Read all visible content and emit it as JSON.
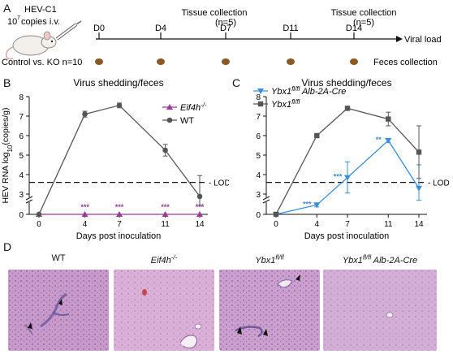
{
  "panels": {
    "a": "A",
    "b": "B",
    "c": "C",
    "d": "D"
  },
  "timeline": {
    "virus": "HEV-C1",
    "dose_base": "10",
    "dose_exp": "7",
    "dose_rest": "copies  i.v.",
    "groups": "Control vs. KO  n=10",
    "days": [
      "D0",
      "D4",
      "D7",
      "D11",
      "D14"
    ],
    "tissue1_line1": "Tissue collection",
    "tissue1_line2": "(n=5)",
    "tissue2_line1": "Tissue collection",
    "tissue2_line2": "(n=5)",
    "viral_load": "Viral load",
    "feces": "Feces collection"
  },
  "chart_data": [
    {
      "type": "line",
      "title": "Virus shedding/feces",
      "xlabel": "Days post inoculation",
      "ylabel": "HEV RNA log10(copies/g)",
      "x": [
        0,
        4,
        7,
        11,
        14
      ],
      "yticks": [
        "0",
        "3",
        "4",
        "5",
        "6",
        "7",
        "8"
      ],
      "ylim_broken": [
        0,
        8
      ],
      "lod": 3.6,
      "lod_label": "LOD",
      "series": [
        {
          "name": "Eif4h-/-",
          "color": "#9b3b95",
          "marker": "triangle",
          "values": [
            0,
            0,
            0,
            0,
            0
          ],
          "errors": [
            0,
            0,
            0,
            0,
            0
          ],
          "significance": [
            "",
            "***",
            "***",
            "***",
            "***"
          ]
        },
        {
          "name": "WT",
          "color": "#555555",
          "marker": "circle",
          "values": [
            0,
            7.1,
            7.55,
            5.25,
            2.65
          ],
          "errors": [
            0,
            0.15,
            0.12,
            0.3,
            1.3
          ]
        }
      ]
    },
    {
      "type": "line",
      "title": "Virus shedding/feces",
      "xlabel": "Days post inoculation",
      "ylabel": "",
      "x": [
        0,
        4,
        7,
        11,
        14
      ],
      "yticks": [
        "0",
        "3",
        "4",
        "5",
        "6",
        "7",
        "8"
      ],
      "ylim_broken": [
        0,
        8
      ],
      "lod": 3.6,
      "lod_label": "LOD",
      "series": [
        {
          "name": "Ybx1fl/fl Alb-2A-Cre",
          "color": "#3a8fdb",
          "marker": "triangle-down",
          "values": [
            0,
            1.4,
            3.85,
            5.75,
            3.3
          ],
          "errors": [
            0,
            0.3,
            0.8,
            0.1,
            1.2
          ],
          "significance": [
            "",
            "***",
            "***",
            "**",
            ""
          ]
        },
        {
          "name": "Ybx1fl/fl",
          "color": "#555555",
          "marker": "square",
          "values": [
            0,
            6.0,
            7.4,
            6.85,
            5.15
          ],
          "errors": [
            0,
            0.05,
            0.1,
            0.35,
            1.35
          ]
        }
      ]
    }
  ],
  "histology": {
    "titles": [
      "WT",
      "Eif4h-/-",
      "Ybx1fl/fl",
      "Ybx1fl/fl Alb-2A-Cre"
    ]
  }
}
